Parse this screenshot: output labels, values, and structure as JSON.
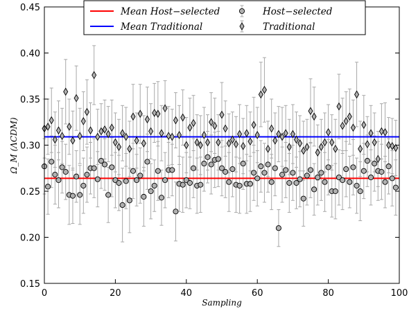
{
  "chart_data": {
    "type": "scatter",
    "xlabel": "Sampling",
    "ylabel": "Ω_M (ΛCDM)",
    "xlim": [
      0,
      100
    ],
    "ylim": [
      0.15,
      0.45
    ],
    "x_ticks": [
      "0",
      "20",
      "40",
      "60",
      "80",
      "100"
    ],
    "y_ticks": [
      "0.15",
      "0.20",
      "0.25",
      "0.30",
      "0.35",
      "0.40",
      "0.45"
    ],
    "legend_position": "top",
    "legend": [
      {
        "label": "Mean Host−selected",
        "kind": "line",
        "color": "#ff0000"
      },
      {
        "label": "Mean Traditional",
        "kind": "line",
        "color": "#0000ff"
      },
      {
        "label": "Host−selected",
        "kind": "circle",
        "color": "#b0b0b0"
      },
      {
        "label": "Traditional",
        "kind": "diamond",
        "color": "#b0b0b0"
      }
    ],
    "mean_lines": [
      {
        "name": "Mean Host−selected",
        "y": 0.264,
        "color": "#ff0000"
      },
      {
        "name": "Mean Traditional",
        "y": 0.309,
        "color": "#0000ff"
      }
    ],
    "series": [
      {
        "name": "Host−selected",
        "marker": "circle",
        "x": [
          0,
          1,
          2,
          3,
          4,
          5,
          6,
          7,
          8,
          9,
          10,
          11,
          12,
          13,
          14,
          15,
          16,
          17,
          18,
          19,
          20,
          21,
          22,
          23,
          24,
          25,
          26,
          27,
          28,
          29,
          30,
          31,
          32,
          33,
          34,
          35,
          36,
          37,
          38,
          39,
          40,
          41,
          42,
          43,
          44,
          45,
          46,
          47,
          48,
          49,
          50,
          51,
          52,
          53,
          54,
          55,
          56,
          57,
          58,
          59,
          60,
          61,
          62,
          63,
          64,
          65,
          66,
          67,
          68,
          69,
          70,
          71,
          72,
          73,
          74,
          75,
          76,
          77,
          78,
          79,
          80,
          81,
          82,
          83,
          84,
          85,
          86,
          87,
          88,
          89,
          90,
          91,
          92,
          93,
          94,
          95,
          96,
          97,
          98,
          99
        ],
        "y": [
          0.277,
          0.255,
          0.282,
          0.268,
          0.262,
          0.276,
          0.271,
          0.246,
          0.245,
          0.266,
          0.246,
          0.256,
          0.268,
          0.275,
          0.275,
          0.263,
          0.283,
          0.279,
          0.246,
          0.276,
          0.262,
          0.259,
          0.235,
          0.261,
          0.24,
          0.272,
          0.262,
          0.267,
          0.244,
          0.282,
          0.25,
          0.256,
          0.272,
          0.243,
          0.262,
          0.273,
          0.273,
          0.228,
          0.258,
          0.257,
          0.262,
          0.259,
          0.275,
          0.256,
          0.257,
          0.28,
          0.287,
          0.279,
          0.284,
          0.285,
          0.275,
          0.271,
          0.26,
          0.274,
          0.257,
          0.256,
          0.28,
          0.258,
          0.258,
          0.27,
          0.264,
          0.277,
          0.27,
          0.279,
          0.26,
          0.275,
          0.21,
          0.268,
          0.273,
          0.259,
          0.27,
          0.259,
          0.263,
          0.242,
          0.267,
          0.273,
          0.252,
          0.265,
          0.27,
          0.26,
          0.276,
          0.25,
          0.25,
          0.265,
          0.262,
          0.274,
          0.26,
          0.276,
          0.256,
          0.25,
          0.272,
          0.283,
          0.265,
          0.28,
          0.272,
          0.271,
          0.26,
          0.277,
          0.264,
          0.254
        ],
        "error": [
          0.03,
          0.03,
          0.028,
          0.032,
          0.03,
          0.028,
          0.03,
          0.032,
          0.03,
          0.028,
          0.032,
          0.03,
          0.03,
          0.028,
          0.032,
          0.03,
          0.03,
          0.028,
          0.03,
          0.032,
          0.03,
          0.03,
          0.04,
          0.03,
          0.035,
          0.03,
          0.028,
          0.03,
          0.032,
          0.03,
          0.03,
          0.028,
          0.032,
          0.03,
          0.03,
          0.03,
          0.028,
          0.032,
          0.03,
          0.03,
          0.03,
          0.028,
          0.032,
          0.03,
          0.03,
          0.03,
          0.028,
          0.032,
          0.03,
          0.03,
          0.03,
          0.028,
          0.032,
          0.03,
          0.03,
          0.03,
          0.028,
          0.032,
          0.03,
          0.03,
          0.03,
          0.028,
          0.032,
          0.03,
          0.03,
          0.03,
          0.02,
          0.03,
          0.03,
          0.032,
          0.03,
          0.028,
          0.03,
          0.03,
          0.032,
          0.03,
          0.028,
          0.03,
          0.03,
          0.032,
          0.03,
          0.028,
          0.03,
          0.03,
          0.032,
          0.03,
          0.028,
          0.03,
          0.03,
          0.032,
          0.03,
          0.028,
          0.03,
          0.03,
          0.032,
          0.03,
          0.028,
          0.03,
          0.03,
          0.03
        ]
      },
      {
        "name": "Traditional",
        "marker": "diamond",
        "x": [
          0,
          1,
          2,
          3,
          4,
          5,
          6,
          7,
          8,
          9,
          10,
          11,
          12,
          13,
          14,
          15,
          16,
          17,
          18,
          19,
          20,
          21,
          22,
          23,
          24,
          25,
          26,
          27,
          28,
          29,
          30,
          31,
          32,
          33,
          34,
          35,
          36,
          37,
          38,
          39,
          40,
          41,
          42,
          43,
          44,
          45,
          46,
          47,
          48,
          49,
          50,
          51,
          52,
          53,
          54,
          55,
          56,
          57,
          58,
          59,
          60,
          61,
          62,
          63,
          64,
          65,
          66,
          67,
          68,
          69,
          70,
          71,
          72,
          73,
          74,
          75,
          76,
          77,
          78,
          79,
          80,
          81,
          82,
          83,
          84,
          85,
          86,
          87,
          88,
          89,
          90,
          91,
          92,
          93,
          94,
          95,
          96,
          97,
          98,
          99
        ],
        "y": [
          0.318,
          0.32,
          0.327,
          0.306,
          0.316,
          0.31,
          0.358,
          0.32,
          0.305,
          0.351,
          0.31,
          0.326,
          0.336,
          0.316,
          0.376,
          0.309,
          0.315,
          0.317,
          0.312,
          0.319,
          0.303,
          0.298,
          0.313,
          0.309,
          0.296,
          0.331,
          0.305,
          0.334,
          0.302,
          0.328,
          0.315,
          0.335,
          0.334,
          0.313,
          0.34,
          0.31,
          0.309,
          0.327,
          0.311,
          0.33,
          0.3,
          0.319,
          0.324,
          0.303,
          0.3,
          0.311,
          0.303,
          0.325,
          0.321,
          0.303,
          0.333,
          0.318,
          0.302,
          0.306,
          0.301,
          0.312,
          0.299,
          0.313,
          0.304,
          0.322,
          0.311,
          0.355,
          0.36,
          0.296,
          0.318,
          0.305,
          0.312,
          0.309,
          0.313,
          0.298,
          0.312,
          0.306,
          0.302,
          0.294,
          0.298,
          0.337,
          0.331,
          0.292,
          0.298,
          0.303,
          0.314,
          0.303,
          0.296,
          0.342,
          0.321,
          0.326,
          0.331,
          0.319,
          0.355,
          0.296,
          0.322,
          0.301,
          0.313,
          0.303,
          0.285,
          0.315,
          0.314,
          0.3,
          0.299,
          0.297
        ],
        "error": [
          0.032,
          0.03,
          0.035,
          0.03,
          0.032,
          0.03,
          0.035,
          0.03,
          0.032,
          0.035,
          0.03,
          0.032,
          0.035,
          0.03,
          0.032,
          0.03,
          0.03,
          0.032,
          0.03,
          0.03,
          0.032,
          0.03,
          0.03,
          0.032,
          0.03,
          0.035,
          0.03,
          0.032,
          0.03,
          0.035,
          0.03,
          0.032,
          0.035,
          0.03,
          0.03,
          0.032,
          0.03,
          0.03,
          0.032,
          0.03,
          0.03,
          0.032,
          0.03,
          0.03,
          0.032,
          0.03,
          0.03,
          0.032,
          0.03,
          0.03,
          0.035,
          0.03,
          0.032,
          0.03,
          0.03,
          0.032,
          0.03,
          0.03,
          0.032,
          0.03,
          0.03,
          0.035,
          0.035,
          0.03,
          0.032,
          0.03,
          0.03,
          0.032,
          0.03,
          0.03,
          0.032,
          0.03,
          0.03,
          0.032,
          0.03,
          0.035,
          0.032,
          0.03,
          0.03,
          0.032,
          0.03,
          0.03,
          0.032,
          0.035,
          0.03,
          0.032,
          0.03,
          0.03,
          0.035,
          0.03,
          0.032,
          0.03,
          0.03,
          0.032,
          0.03,
          0.03,
          0.032,
          0.03,
          0.03,
          0.03
        ]
      }
    ]
  }
}
